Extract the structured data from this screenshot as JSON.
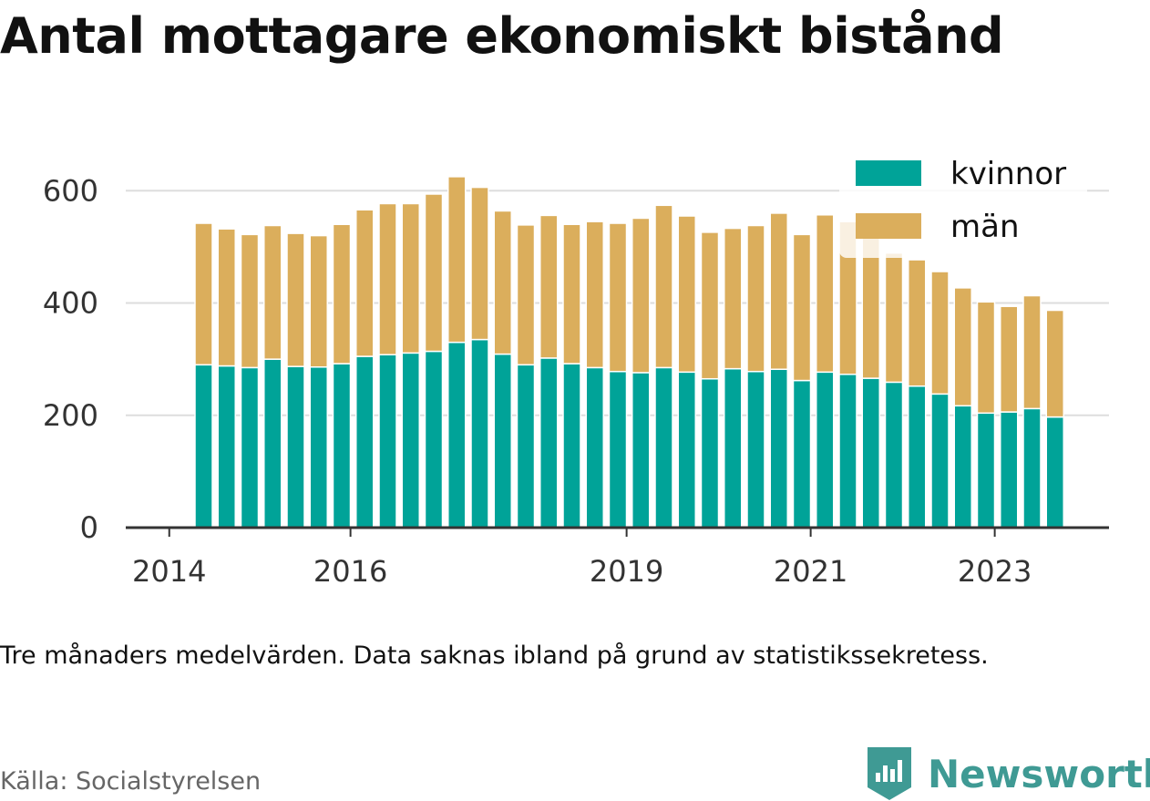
{
  "title": "Antal mottagare ekonomiskt bistånd",
  "note": "Tre månaders medelvärden. Data saknas ibland på grund av statistikssekretess.",
  "source": "Källa: Socialstyrelsen",
  "brand": {
    "name": "Newsworthy",
    "icon": "newsworthy-logo-icon",
    "color": "#3f9a94"
  },
  "colors": {
    "kvinnor": "#00a398",
    "man": "#dbae5c",
    "grid": "#dddddd",
    "axis": "#333333"
  },
  "chart_data": {
    "type": "bar",
    "stacked": true,
    "title": "Antal mottagare ekonomiskt bistånd",
    "xlabel": "",
    "ylabel": "",
    "ylim": [
      0,
      650
    ],
    "yticks": [
      0,
      200,
      400,
      600
    ],
    "x_tick_labels": [
      "2014",
      "2016",
      "2019",
      "2021",
      "2023"
    ],
    "grid": true,
    "legend_position": "top-right",
    "categories": [
      "2014-Q2",
      "2014-Q3",
      "2014-Q4",
      "2015-Q1",
      "2015-Q2",
      "2015-Q3",
      "2015-Q4",
      "2016-Q1",
      "2016-Q2",
      "2016-Q3",
      "2016-Q4",
      "2017-Q1",
      "2017-Q2",
      "2017-Q3",
      "2017-Q4",
      "2018-Q1",
      "2018-Q2",
      "2018-Q3",
      "2018-Q4",
      "2019-Q1",
      "2019-Q2",
      "2019-Q3",
      "2019-Q4",
      "2020-Q1",
      "2020-Q2",
      "2020-Q3",
      "2020-Q4",
      "2021-Q1",
      "2021-Q2",
      "2021-Q3",
      "2021-Q4",
      "2022-Q1",
      "2022-Q2",
      "2022-Q3",
      "2022-Q4",
      "2023-Q1",
      "2023-Q2",
      "2023-Q3"
    ],
    "series": [
      {
        "name": "kvinnor",
        "values": [
          290,
          288,
          285,
          300,
          287,
          286,
          292,
          305,
          308,
          311,
          314,
          330,
          335,
          309,
          290,
          302,
          292,
          285,
          278,
          276,
          285,
          277,
          265,
          283,
          278,
          282,
          262,
          277,
          273,
          266,
          259,
          252,
          238,
          217,
          204,
          206,
          212,
          197
        ]
      },
      {
        "name": "män",
        "values": [
          252,
          244,
          237,
          238,
          237,
          234,
          248,
          261,
          269,
          266,
          280,
          295,
          271,
          255,
          249,
          254,
          248,
          260,
          264,
          275,
          289,
          278,
          261,
          250,
          260,
          278,
          260,
          280,
          272,
          255,
          230,
          225,
          218,
          210,
          198,
          188,
          201,
          190
        ]
      }
    ]
  }
}
